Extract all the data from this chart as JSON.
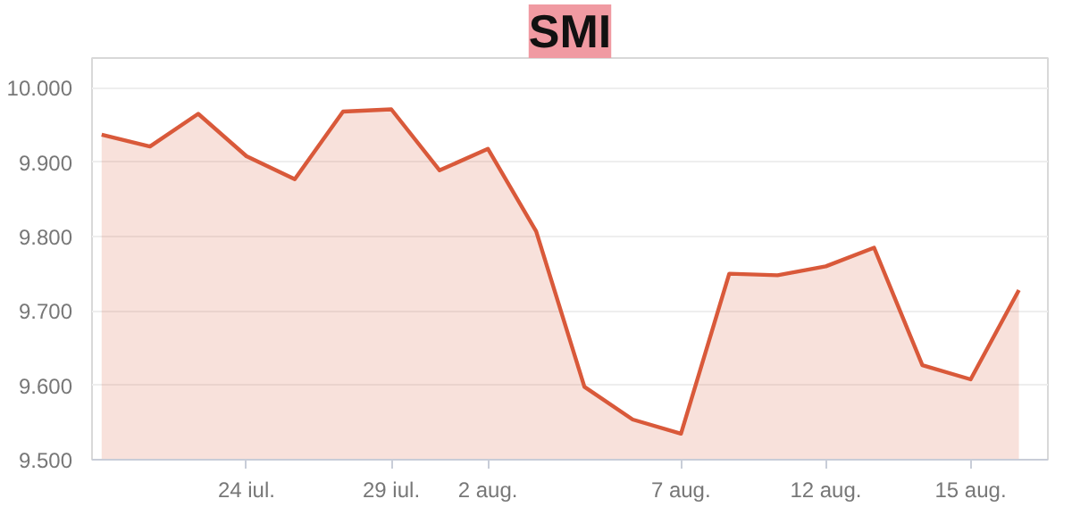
{
  "chart_data": {
    "type": "area",
    "title": "SMI",
    "categories": [
      null,
      null,
      null,
      "24 iul.",
      null,
      null,
      "29 iul.",
      null,
      "2 aug.",
      null,
      null,
      null,
      "7 aug.",
      null,
      null,
      "12 aug.",
      null,
      null,
      "15 aug.",
      null
    ],
    "series": [
      {
        "color": "#d9593a",
        "values": [
          9937,
          9921,
          9965,
          9908,
          9877,
          9968,
          9971,
          9889,
          9918,
          9807,
          9598,
          9554,
          9535,
          9750,
          9748,
          9760,
          9785,
          9627,
          9608,
          9728
        ]
      }
    ],
    "ylim": [
      9500,
      10040
    ],
    "yticks": [
      {
        "value": 9500,
        "label": "9.500"
      },
      {
        "value": 9600,
        "label": "9.600"
      },
      {
        "value": 9700,
        "label": "9.700"
      },
      {
        "value": 9800,
        "label": "9.800"
      },
      {
        "value": 9900,
        "label": "9.900"
      },
      {
        "value": 10000,
        "label": "10.000"
      }
    ],
    "grid": "y"
  }
}
